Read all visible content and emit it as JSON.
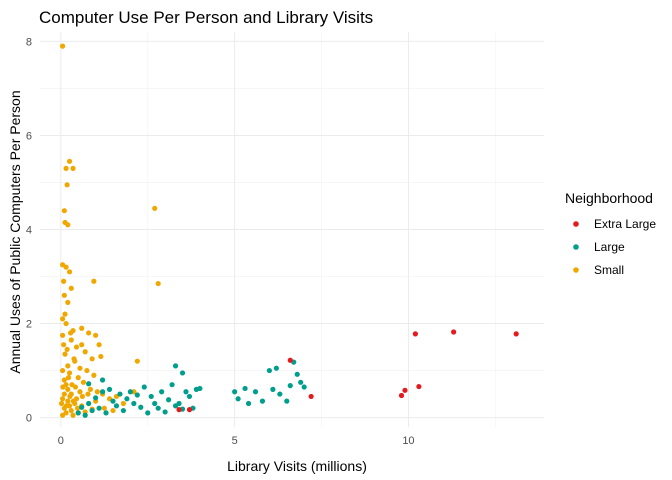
{
  "chart_data": {
    "type": "scatter",
    "title": "Computer Use Per Person and Library Visits",
    "xlabel": "Library Visits (millions)",
    "ylabel": "Annual Uses of Public Computers Per Person",
    "xlim": [
      -0.6,
      13.9
    ],
    "ylim": [
      -0.2,
      8.2
    ],
    "x_ticks": [
      0,
      5,
      10
    ],
    "y_ticks": [
      0,
      2,
      4,
      6,
      8
    ],
    "grid": true,
    "legend": {
      "title": "Neighborhood",
      "position": "right"
    },
    "series": [
      {
        "name": "Extra Large",
        "color": "#e41a1c",
        "points": [
          [
            6.6,
            1.22
          ],
          [
            7.2,
            0.45
          ],
          [
            10.2,
            1.78
          ],
          [
            11.3,
            1.82
          ],
          [
            13.1,
            1.78
          ],
          [
            9.8,
            0.47
          ],
          [
            9.9,
            0.58
          ],
          [
            10.3,
            0.66
          ],
          [
            3.4,
            0.17
          ],
          [
            3.7,
            0.17
          ]
        ]
      },
      {
        "name": "Large",
        "color": "#009e8c",
        "points": [
          [
            0.5,
            0.1
          ],
          [
            0.6,
            0.22
          ],
          [
            0.7,
            0.05
          ],
          [
            0.8,
            0.3
          ],
          [
            0.9,
            0.15
          ],
          [
            1.0,
            0.42
          ],
          [
            1.1,
            0.2
          ],
          [
            1.2,
            0.55
          ],
          [
            1.3,
            0.1
          ],
          [
            1.4,
            0.6
          ],
          [
            1.5,
            0.35
          ],
          [
            1.6,
            0.25
          ],
          [
            1.7,
            0.5
          ],
          [
            1.8,
            0.15
          ],
          [
            1.9,
            0.4
          ],
          [
            2.0,
            0.55
          ],
          [
            2.1,
            0.3
          ],
          [
            2.2,
            0.48
          ],
          [
            2.3,
            0.22
          ],
          [
            2.4,
            0.65
          ],
          [
            2.5,
            0.1
          ],
          [
            2.6,
            0.45
          ],
          [
            2.7,
            0.3
          ],
          [
            2.8,
            0.2
          ],
          [
            2.9,
            0.55
          ],
          [
            3.0,
            0.12
          ],
          [
            3.1,
            0.38
          ],
          [
            3.2,
            0.7
          ],
          [
            3.3,
            1.1
          ],
          [
            3.4,
            0.3
          ],
          [
            3.5,
            0.95
          ],
          [
            3.6,
            0.55
          ],
          [
            3.7,
            0.45
          ],
          [
            3.8,
            0.2
          ],
          [
            3.9,
            0.6
          ],
          [
            4.0,
            0.62
          ],
          [
            0.8,
            0.72
          ],
          [
            1.2,
            0.8
          ],
          [
            3.3,
            0.25
          ],
          [
            3.5,
            0.18
          ],
          [
            5.0,
            0.55
          ],
          [
            5.1,
            0.4
          ],
          [
            5.3,
            0.62
          ],
          [
            5.4,
            0.3
          ],
          [
            5.6,
            0.55
          ],
          [
            5.8,
            0.35
          ],
          [
            6.0,
            1.0
          ],
          [
            6.1,
            0.6
          ],
          [
            6.2,
            1.05
          ],
          [
            6.3,
            0.5
          ],
          [
            6.6,
            0.68
          ],
          [
            6.7,
            1.18
          ],
          [
            6.8,
            0.92
          ],
          [
            6.9,
            0.75
          ],
          [
            7.0,
            0.65
          ],
          [
            6.5,
            0.35
          ]
        ]
      },
      {
        "name": "Small",
        "color": "#f0a800",
        "points": [
          [
            0.05,
            7.9
          ],
          [
            0.25,
            5.45
          ],
          [
            0.35,
            5.3
          ],
          [
            0.15,
            5.3
          ],
          [
            0.18,
            4.95
          ],
          [
            0.1,
            4.4
          ],
          [
            0.12,
            4.15
          ],
          [
            0.2,
            4.1
          ],
          [
            2.7,
            4.45
          ],
          [
            0.05,
            3.25
          ],
          [
            0.15,
            3.2
          ],
          [
            0.25,
            3.1
          ],
          [
            0.08,
            2.9
          ],
          [
            0.3,
            2.75
          ],
          [
            0.95,
            2.9
          ],
          [
            2.8,
            2.85
          ],
          [
            0.1,
            2.6
          ],
          [
            0.2,
            2.45
          ],
          [
            0.05,
            2.1
          ],
          [
            0.15,
            2.0
          ],
          [
            0.35,
            1.85
          ],
          [
            0.6,
            1.9
          ],
          [
            0.8,
            1.8
          ],
          [
            1.0,
            1.75
          ],
          [
            1.1,
            1.55
          ],
          [
            0.3,
            1.65
          ],
          [
            0.45,
            1.5
          ],
          [
            0.7,
            1.4
          ],
          [
            0.9,
            1.25
          ],
          [
            1.15,
            1.3
          ],
          [
            0.4,
            1.2
          ],
          [
            0.55,
            1.05
          ],
          [
            0.75,
            1.0
          ],
          [
            0.95,
            0.9
          ],
          [
            0.2,
            1.1
          ],
          [
            0.25,
            0.95
          ],
          [
            0.5,
            0.85
          ],
          [
            0.65,
            0.75
          ],
          [
            0.85,
            0.6
          ],
          [
            1.05,
            0.55
          ],
          [
            1.2,
            0.5
          ],
          [
            1.4,
            0.4
          ],
          [
            1.6,
            0.45
          ],
          [
            2.2,
            1.2
          ],
          [
            2.1,
            0.55
          ],
          [
            0.05,
            1.0
          ],
          [
            0.1,
            0.8
          ],
          [
            0.15,
            0.7
          ],
          [
            0.2,
            0.6
          ],
          [
            0.1,
            0.5
          ],
          [
            0.3,
            0.5
          ],
          [
            0.05,
            0.4
          ],
          [
            0.2,
            0.35
          ],
          [
            0.4,
            0.3
          ],
          [
            0.6,
            0.25
          ],
          [
            0.8,
            0.3
          ],
          [
            0.1,
            0.2
          ],
          [
            0.3,
            0.15
          ],
          [
            0.5,
            0.1
          ],
          [
            0.05,
            0.05
          ],
          [
            0.15,
            0.1
          ],
          [
            0.25,
            0.25
          ],
          [
            0.35,
            0.05
          ],
          [
            0.45,
            0.4
          ],
          [
            0.55,
            0.55
          ],
          [
            0.7,
            0.12
          ],
          [
            0.9,
            0.18
          ],
          [
            1.0,
            0.35
          ],
          [
            0.12,
            1.35
          ],
          [
            0.28,
            1.8
          ],
          [
            0.38,
            1.25
          ],
          [
            0.08,
            1.55
          ],
          [
            0.18,
            1.45
          ],
          [
            0.22,
            0.85
          ],
          [
            0.32,
            0.7
          ],
          [
            0.42,
            0.65
          ],
          [
            0.48,
            0.2
          ],
          [
            0.62,
            0.45
          ],
          [
            0.78,
            0.5
          ],
          [
            0.02,
            0.3
          ],
          [
            0.06,
            0.65
          ],
          [
            0.16,
            0.25
          ],
          [
            0.26,
            0.45
          ],
          [
            0.36,
            0.35
          ],
          [
            1.25,
            0.2
          ],
          [
            1.5,
            0.15
          ],
          [
            1.8,
            0.3
          ],
          [
            0.6,
            1.55
          ],
          [
            0.05,
            1.75
          ],
          [
            0.12,
            2.2
          ]
        ]
      }
    ]
  }
}
